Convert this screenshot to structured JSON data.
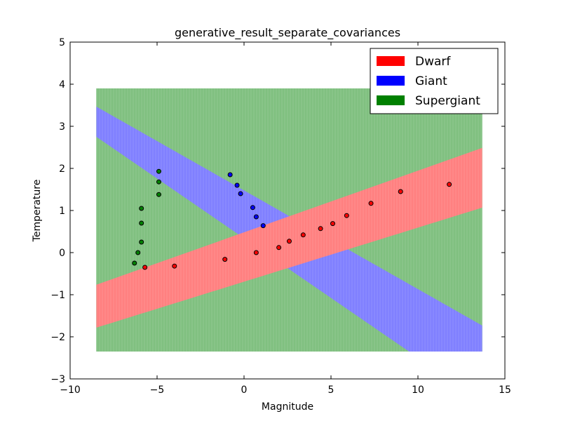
{
  "chart_data": {
    "type": "scatter",
    "title": "generative_result_separate_covariances",
    "xlabel": "Magnitude",
    "ylabel": "Temperature",
    "xlim": [
      -10,
      15
    ],
    "ylim": [
      -3,
      5
    ],
    "xticks": [
      -10,
      -5,
      0,
      5,
      10,
      15
    ],
    "yticks": [
      -3,
      -2,
      -1,
      0,
      1,
      2,
      3,
      4,
      5
    ],
    "xtick_labels": [
      "−10",
      "−5",
      "0",
      "5",
      "10",
      "15"
    ],
    "ytick_labels": [
      "−3",
      "−2",
      "−1",
      "0",
      "1",
      "2",
      "3",
      "4",
      "5"
    ],
    "grid": false,
    "legend_position": "upper right",
    "legend": [
      {
        "label": "Dwarf",
        "color": "#ff0000"
      },
      {
        "label": "Giant",
        "color": "#0000ff"
      },
      {
        "label": "Supergiant",
        "color": "#008000"
      }
    ],
    "region_colors": {
      "Dwarf": "#ff8080",
      "Giant": "#8080ff",
      "Supergiant": "#80c080"
    },
    "decision_region": {
      "x_range": [
        -8.5,
        13.7
      ],
      "y_range": [
        -2.35,
        3.9
      ],
      "dwarf_band": {
        "lower": {
          "slope": 0.1285,
          "intercept": -0.3415
        },
        "upper": {
          "slope": 0.1465,
          "intercept": 0.4309
        }
      },
      "giant_band": {
        "lower": {
          "slope": -0.2544,
          "intercept": 0.9769
        },
        "upper": {
          "slope": -0.2637,
          "intercept": 0.8414
        }
      },
      "merge_x": [
        -0.5,
        5.0
      ]
    },
    "series": [
      {
        "name": "Dwarf",
        "color": "#ff0000",
        "points": [
          [
            -5.7,
            -0.35
          ],
          [
            -4.0,
            -0.32
          ],
          [
            -1.1,
            -0.16
          ],
          [
            0.7,
            0.0
          ],
          [
            2.0,
            0.12
          ],
          [
            2.6,
            0.27
          ],
          [
            3.4,
            0.42
          ],
          [
            4.4,
            0.57
          ],
          [
            5.1,
            0.69
          ],
          [
            5.9,
            0.88
          ],
          [
            7.3,
            1.17
          ],
          [
            9.0,
            1.45
          ],
          [
            11.8,
            1.62
          ]
        ]
      },
      {
        "name": "Giant",
        "color": "#0000ff",
        "points": [
          [
            -0.8,
            1.85
          ],
          [
            -0.4,
            1.6
          ],
          [
            -0.2,
            1.4
          ],
          [
            0.5,
            1.07
          ],
          [
            0.7,
            0.85
          ],
          [
            1.1,
            0.64
          ]
        ]
      },
      {
        "name": "Supergiant",
        "color": "#008000",
        "points": [
          [
            -6.3,
            -0.25
          ],
          [
            -6.1,
            0.0
          ],
          [
            -5.9,
            0.25
          ],
          [
            -5.9,
            0.7
          ],
          [
            -5.9,
            1.05
          ],
          [
            -4.9,
            1.38
          ],
          [
            -4.9,
            1.68
          ],
          [
            -4.9,
            1.93
          ]
        ]
      }
    ]
  }
}
